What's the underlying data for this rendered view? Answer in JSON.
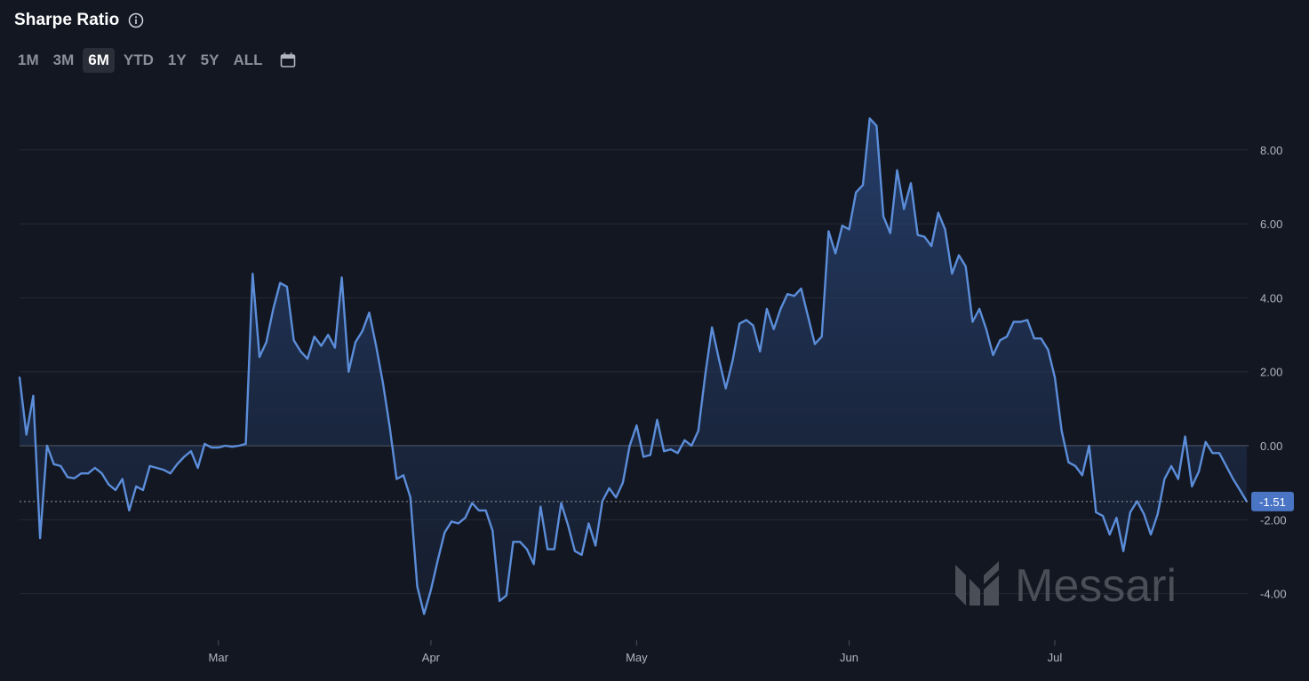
{
  "header": {
    "title": "Sharpe Ratio",
    "info_icon": "info-icon"
  },
  "ranges": {
    "options": [
      "1M",
      "3M",
      "6M",
      "YTD",
      "1Y",
      "5Y",
      "ALL"
    ],
    "selected": "6M",
    "calendar_icon": "calendar-icon"
  },
  "watermark": {
    "text": "Messari"
  },
  "colors": {
    "line": "#5b8dd9",
    "background": "#131722",
    "grid": "#2a2e39",
    "badge": "#4a74c4"
  },
  "chart_data": {
    "type": "area",
    "title": "Sharpe Ratio",
    "xlabel": "",
    "ylabel": "",
    "ylim": [
      -5,
      9
    ],
    "yticks": [
      -4,
      -2,
      0,
      2,
      4,
      6,
      8
    ],
    "ytick_labels": [
      "-4.00",
      "-2.00",
      "0.00",
      "2.00",
      "4.00",
      "6.00",
      "8.00"
    ],
    "xtick_labels": [
      {
        "label": "Mar",
        "index": 29
      },
      {
        "label": "Apr",
        "index": 60
      },
      {
        "label": "May",
        "index": 90
      },
      {
        "label": "Jun",
        "index": 121
      },
      {
        "label": "Jul",
        "index": 151
      }
    ],
    "grid": true,
    "last_value_label": "-1.51",
    "series": [
      {
        "values": [
          1.85,
          0.3,
          1.35,
          -2.5,
          0.0,
          -0.5,
          -0.55,
          -0.85,
          -0.88,
          -0.75,
          -0.75,
          -0.6,
          -0.75,
          -1.05,
          -1.2,
          -0.9,
          -1.75,
          -1.1,
          -1.2,
          -0.55,
          -0.6,
          -0.65,
          -0.75,
          -0.5,
          -0.3,
          -0.15,
          -0.6,
          0.05,
          -0.05,
          -0.05,
          0.0,
          -0.03,
          0.0,
          0.05,
          4.65,
          2.4,
          2.8,
          3.7,
          4.4,
          4.3,
          2.85,
          2.55,
          2.35,
          2.95,
          2.7,
          3.0,
          2.65,
          4.55,
          2.0,
          2.8,
          3.1,
          3.6,
          2.7,
          1.7,
          0.5,
          -0.9,
          -0.8,
          -1.4,
          -3.8,
          -4.55,
          -3.9,
          -3.1,
          -2.35,
          -2.05,
          -2.1,
          -1.95,
          -1.55,
          -1.75,
          -1.75,
          -2.3,
          -4.2,
          -4.05,
          -2.6,
          -2.6,
          -2.8,
          -3.2,
          -1.65,
          -2.8,
          -2.8,
          -1.55,
          -2.15,
          -2.85,
          -2.95,
          -2.1,
          -2.7,
          -1.5,
          -1.15,
          -1.4,
          -1.0,
          0.0,
          0.55,
          -0.3,
          -0.25,
          0.7,
          -0.15,
          -0.1,
          -0.2,
          0.15,
          0.0,
          0.4,
          1.9,
          3.2,
          2.35,
          1.55,
          2.3,
          3.3,
          3.4,
          3.25,
          2.55,
          3.7,
          3.15,
          3.7,
          4.1,
          4.05,
          4.25,
          3.5,
          2.75,
          2.95,
          5.8,
          5.2,
          5.95,
          5.85,
          6.85,
          7.05,
          8.85,
          8.65,
          6.2,
          5.75,
          7.45,
          6.4,
          7.1,
          5.7,
          5.65,
          5.4,
          6.3,
          5.85,
          4.65,
          5.15,
          4.85,
          3.35,
          3.7,
          3.15,
          2.45,
          2.85,
          2.95,
          3.35,
          3.35,
          3.4,
          2.9,
          2.9,
          2.6,
          1.85,
          0.4,
          -0.45,
          -0.55,
          -0.8,
          0.0,
          -1.8,
          -1.9,
          -2.4,
          -1.95,
          -2.85,
          -1.8,
          -1.5,
          -1.85,
          -2.4,
          -1.85,
          -0.9,
          -0.55,
          -0.9,
          0.25,
          -1.1,
          -0.7,
          0.1,
          -0.2,
          -0.2,
          -0.55,
          -0.9,
          -1.2,
          -1.51
        ]
      }
    ]
  }
}
